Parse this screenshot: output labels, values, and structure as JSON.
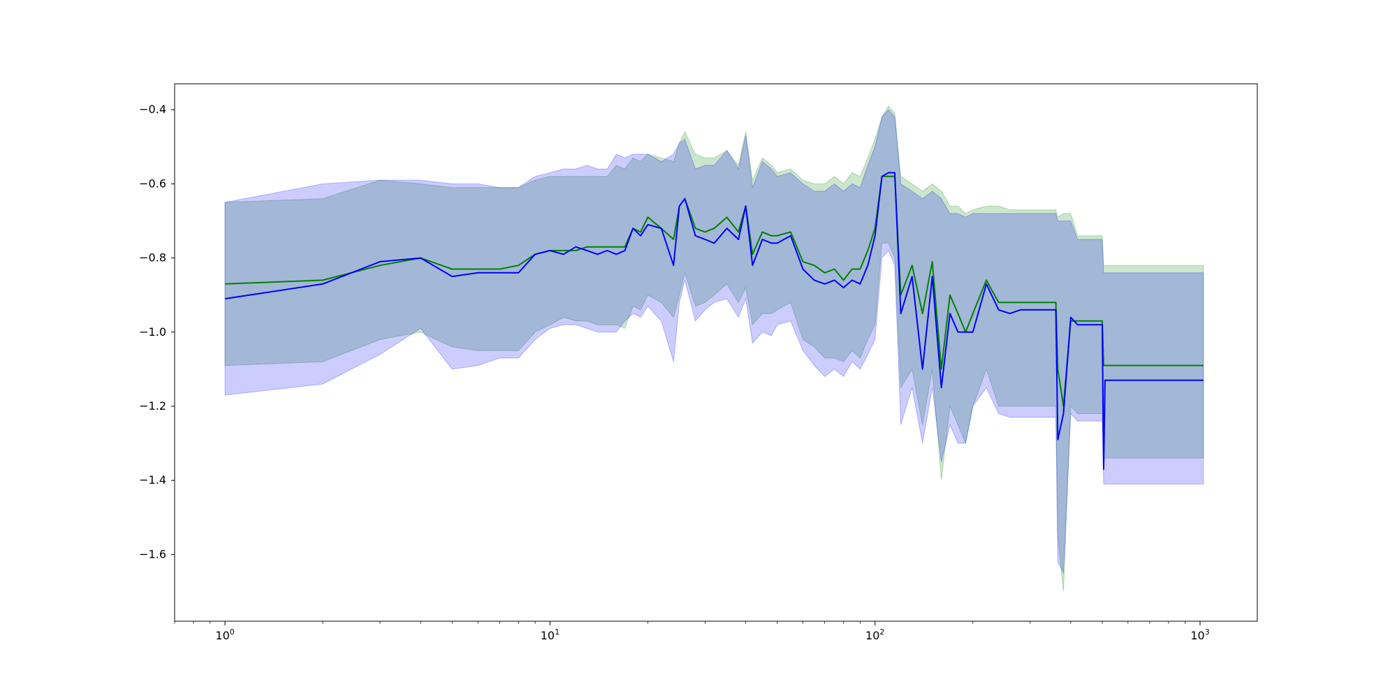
{
  "chart_data": {
    "type": "line",
    "title": "",
    "xlabel": "",
    "ylabel": "",
    "xscale": "log",
    "xlim": [
      0.7,
      1500
    ],
    "ylim": [
      -1.78,
      -0.33
    ],
    "grid": false,
    "legend": "none",
    "x_ticks": [
      {
        "base": "10",
        "exp": "0",
        "value": 1
      },
      {
        "base": "10",
        "exp": "1",
        "value": 10
      },
      {
        "base": "10",
        "exp": "2",
        "value": 100
      },
      {
        "base": "10",
        "exp": "3",
        "value": 1000
      }
    ],
    "y_ticks": [
      {
        "label": "−0.4",
        "value": -0.4
      },
      {
        "label": "−0.6",
        "value": -0.6
      },
      {
        "label": "−0.8",
        "value": -0.8
      },
      {
        "label": "−1.0",
        "value": -1.0
      },
      {
        "label": "−1.2",
        "value": -1.2
      },
      {
        "label": "−1.4",
        "value": -1.4
      },
      {
        "label": "−1.6",
        "value": -1.6
      }
    ],
    "series": [
      {
        "color": "#008000",
        "band_color": "#008000",
        "band_opacity": 0.2,
        "x": [
          1,
          2,
          3,
          4,
          5,
          6,
          7,
          8,
          9,
          10,
          11,
          12,
          13,
          14,
          15,
          16,
          17,
          18,
          19,
          20,
          22,
          24,
          25,
          26,
          28,
          30,
          32,
          35,
          38,
          40,
          42,
          45,
          48,
          50,
          55,
          60,
          65,
          70,
          75,
          80,
          85,
          90,
          95,
          100,
          105,
          110,
          115,
          120,
          130,
          140,
          150,
          160,
          170,
          180,
          190,
          200,
          220,
          240,
          260,
          280,
          300,
          330,
          360,
          365,
          380,
          400,
          420,
          450,
          480,
          500,
          505,
          510,
          600,
          700,
          800,
          900,
          1024
        ],
        "y": [
          -0.87,
          -0.86,
          -0.82,
          -0.8,
          -0.83,
          -0.83,
          -0.83,
          -0.82,
          -0.79,
          -0.78,
          -0.78,
          -0.78,
          -0.77,
          -0.77,
          -0.77,
          -0.77,
          -0.77,
          -0.72,
          -0.73,
          -0.69,
          -0.72,
          -0.75,
          -0.66,
          -0.64,
          -0.72,
          -0.73,
          -0.72,
          -0.69,
          -0.73,
          -0.66,
          -0.79,
          -0.73,
          -0.74,
          -0.74,
          -0.73,
          -0.81,
          -0.82,
          -0.84,
          -0.83,
          -0.86,
          -0.83,
          -0.83,
          -0.78,
          -0.72,
          -0.58,
          -0.58,
          -0.58,
          -0.9,
          -0.82,
          -0.95,
          -0.81,
          -1.1,
          -0.9,
          -0.95,
          -1.0,
          -0.95,
          -0.86,
          -0.92,
          -0.92,
          -0.92,
          -0.92,
          -0.92,
          -0.92,
          -1.1,
          -1.2,
          -0.97,
          -0.97,
          -0.97,
          -0.97,
          -0.97,
          -1.09,
          -1.09,
          -1.09,
          -1.09,
          -1.09,
          -1.09,
          -1.09
        ],
        "upper": [
          -0.65,
          -0.64,
          -0.59,
          -0.6,
          -0.61,
          -0.61,
          -0.61,
          -0.61,
          -0.59,
          -0.58,
          -0.58,
          -0.58,
          -0.58,
          -0.58,
          -0.58,
          -0.55,
          -0.56,
          -0.53,
          -0.54,
          -0.52,
          -0.53,
          -0.54,
          -0.49,
          -0.46,
          -0.52,
          -0.53,
          -0.53,
          -0.51,
          -0.55,
          -0.46,
          -0.59,
          -0.53,
          -0.55,
          -0.57,
          -0.56,
          -0.59,
          -0.6,
          -0.6,
          -0.58,
          -0.6,
          -0.57,
          -0.58,
          -0.53,
          -0.48,
          -0.42,
          -0.39,
          -0.41,
          -0.58,
          -0.6,
          -0.62,
          -0.6,
          -0.62,
          -0.66,
          -0.66,
          -0.68,
          -0.67,
          -0.66,
          -0.66,
          -0.67,
          -0.67,
          -0.67,
          -0.67,
          -0.67,
          -0.69,
          -0.68,
          -0.68,
          -0.74,
          -0.74,
          -0.74,
          -0.74,
          -0.82,
          -0.82,
          -0.82,
          -0.82,
          -0.82,
          -0.82,
          -0.82
        ],
        "lower": [
          -1.09,
          -1.08,
          -1.02,
          -1.0,
          -1.04,
          -1.05,
          -1.05,
          -1.05,
          -1.0,
          -0.98,
          -0.96,
          -0.97,
          -0.97,
          -0.98,
          -0.98,
          -0.98,
          -0.99,
          -0.93,
          -0.94,
          -0.9,
          -0.92,
          -0.96,
          -0.9,
          -0.84,
          -0.93,
          -0.92,
          -0.9,
          -0.87,
          -0.92,
          -0.88,
          -0.98,
          -0.95,
          -0.95,
          -0.94,
          -0.92,
          -1.02,
          -1.04,
          -1.07,
          -1.07,
          -1.08,
          -1.05,
          -1.07,
          -1.02,
          -0.98,
          -0.76,
          -0.76,
          -0.8,
          -1.15,
          -1.1,
          -1.25,
          -1.1,
          -1.4,
          -1.2,
          -1.25,
          -1.3,
          -1.2,
          -1.1,
          -1.2,
          -1.2,
          -1.2,
          -1.2,
          -1.2,
          -1.2,
          -1.55,
          -1.7,
          -1.2,
          -1.22,
          -1.22,
          -1.22,
          -1.22,
          -1.34,
          -1.34,
          -1.34,
          -1.34,
          -1.34,
          -1.34,
          -1.34
        ]
      },
      {
        "color": "#0000ff",
        "band_color": "#0000ff",
        "band_opacity": 0.2,
        "x": [
          1,
          2,
          3,
          4,
          5,
          6,
          7,
          8,
          9,
          10,
          11,
          12,
          13,
          14,
          15,
          16,
          17,
          18,
          19,
          20,
          22,
          24,
          25,
          26,
          28,
          30,
          32,
          35,
          38,
          40,
          42,
          45,
          48,
          50,
          55,
          60,
          65,
          70,
          75,
          80,
          85,
          90,
          95,
          100,
          105,
          110,
          115,
          120,
          130,
          140,
          150,
          160,
          170,
          180,
          190,
          200,
          220,
          240,
          260,
          280,
          300,
          330,
          360,
          365,
          380,
          400,
          420,
          450,
          480,
          500,
          505,
          510,
          600,
          700,
          800,
          900,
          1024
        ],
        "y": [
          -0.91,
          -0.87,
          -0.81,
          -0.8,
          -0.85,
          -0.84,
          -0.84,
          -0.84,
          -0.79,
          -0.78,
          -0.79,
          -0.77,
          -0.78,
          -0.79,
          -0.78,
          -0.79,
          -0.78,
          -0.72,
          -0.74,
          -0.71,
          -0.72,
          -0.82,
          -0.66,
          -0.64,
          -0.74,
          -0.75,
          -0.76,
          -0.72,
          -0.75,
          -0.66,
          -0.82,
          -0.75,
          -0.76,
          -0.76,
          -0.74,
          -0.83,
          -0.86,
          -0.87,
          -0.86,
          -0.88,
          -0.86,
          -0.87,
          -0.82,
          -0.74,
          -0.58,
          -0.57,
          -0.57,
          -0.95,
          -0.85,
          -1.1,
          -0.85,
          -1.15,
          -0.95,
          -1.0,
          -1.0,
          -1.0,
          -0.87,
          -0.94,
          -0.95,
          -0.94,
          -0.94,
          -0.94,
          -0.94,
          -1.29,
          -1.22,
          -0.96,
          -0.98,
          -0.98,
          -0.98,
          -0.98,
          -1.37,
          -1.13,
          -1.13,
          -1.13,
          -1.13,
          -1.13,
          -1.13
        ],
        "upper": [
          -0.65,
          -0.6,
          -0.59,
          -0.59,
          -0.6,
          -0.6,
          -0.61,
          -0.61,
          -0.58,
          -0.57,
          -0.56,
          -0.56,
          -0.55,
          -0.56,
          -0.56,
          -0.52,
          -0.53,
          -0.52,
          -0.52,
          -0.52,
          -0.54,
          -0.52,
          -0.49,
          -0.48,
          -0.56,
          -0.55,
          -0.55,
          -0.51,
          -0.56,
          -0.47,
          -0.61,
          -0.54,
          -0.56,
          -0.58,
          -0.57,
          -0.6,
          -0.62,
          -0.62,
          -0.6,
          -0.62,
          -0.6,
          -0.61,
          -0.55,
          -0.5,
          -0.42,
          -0.4,
          -0.42,
          -0.6,
          -0.62,
          -0.64,
          -0.62,
          -0.64,
          -0.68,
          -0.68,
          -0.69,
          -0.68,
          -0.68,
          -0.68,
          -0.68,
          -0.68,
          -0.68,
          -0.68,
          -0.68,
          -0.7,
          -0.7,
          -0.7,
          -0.75,
          -0.75,
          -0.75,
          -0.75,
          -0.84,
          -0.84,
          -0.84,
          -0.84,
          -0.84,
          -0.84,
          -0.84
        ],
        "lower": [
          -1.17,
          -1.14,
          -1.06,
          -0.99,
          -1.1,
          -1.09,
          -1.07,
          -1.07,
          -1.02,
          -0.99,
          -0.98,
          -0.98,
          -0.99,
          -1.0,
          -1.0,
          -1.0,
          -0.97,
          -0.95,
          -0.96,
          -0.93,
          -0.97,
          -1.08,
          -0.92,
          -0.86,
          -0.97,
          -0.94,
          -0.92,
          -0.91,
          -0.96,
          -0.91,
          -1.03,
          -1.0,
          -1.01,
          -0.98,
          -0.97,
          -1.05,
          -1.09,
          -1.12,
          -1.1,
          -1.12,
          -1.08,
          -1.1,
          -1.06,
          -1.02,
          -0.8,
          -0.78,
          -0.82,
          -1.25,
          -1.15,
          -1.3,
          -1.15,
          -1.35,
          -1.25,
          -1.3,
          -1.3,
          -1.2,
          -1.15,
          -1.22,
          -1.23,
          -1.23,
          -1.23,
          -1.23,
          -1.23,
          -1.62,
          -1.65,
          -1.22,
          -1.24,
          -1.24,
          -1.24,
          -1.24,
          -1.41,
          -1.41,
          -1.41,
          -1.41,
          -1.41,
          -1.41,
          -1.41
        ]
      }
    ]
  }
}
